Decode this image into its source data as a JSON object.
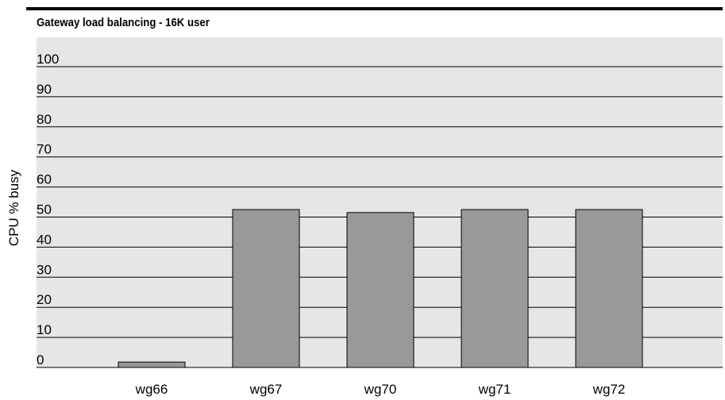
{
  "chart_data": {
    "type": "bar",
    "title": "Gateway load balancing - 16K user",
    "xlabel": "",
    "ylabel": "CPU % busy",
    "categories": [
      "wg66",
      "wg67",
      "wg70",
      "wg71",
      "wg72"
    ],
    "values": [
      1.8,
      52.5,
      51.5,
      52.5,
      52.5
    ],
    "ylim": [
      0,
      100
    ],
    "yticks": [
      "0",
      "10",
      "20",
      "30",
      "40",
      "50",
      "60",
      "70",
      "80",
      "90",
      "100"
    ],
    "grid": true,
    "colors": {
      "plot_background": "#e6e6e6",
      "bar_fill": "#999999",
      "bar_stroke": "#000000",
      "grid_line": "#000000"
    }
  }
}
